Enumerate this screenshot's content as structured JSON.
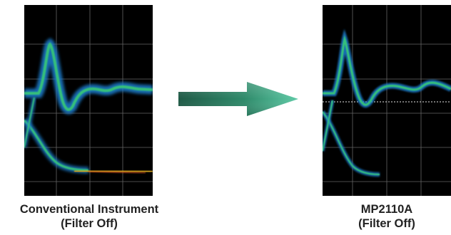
{
  "left_panel": {
    "caption_line1": "Conventional Instrument",
    "caption_line2": "(Filter Off)"
  },
  "right_panel": {
    "caption_line1": "MP2110A",
    "caption_line2": "(Filter Off)"
  },
  "arrow": {
    "direction": "right"
  },
  "colors": {
    "screen_background": "#000000",
    "grid": "#7f7f7f",
    "trace_cool": "#1e7fd0",
    "trace_mid": "#35c07a",
    "trace_hot": "#d9a81c",
    "arrow_dark": "#1f5a46",
    "arrow_light": "#5fcaa6"
  },
  "icons": {
    "left_screen": "eye-diagram-noisy",
    "right_screen": "eye-diagram-clean",
    "arrow": "right-arrow-icon"
  }
}
